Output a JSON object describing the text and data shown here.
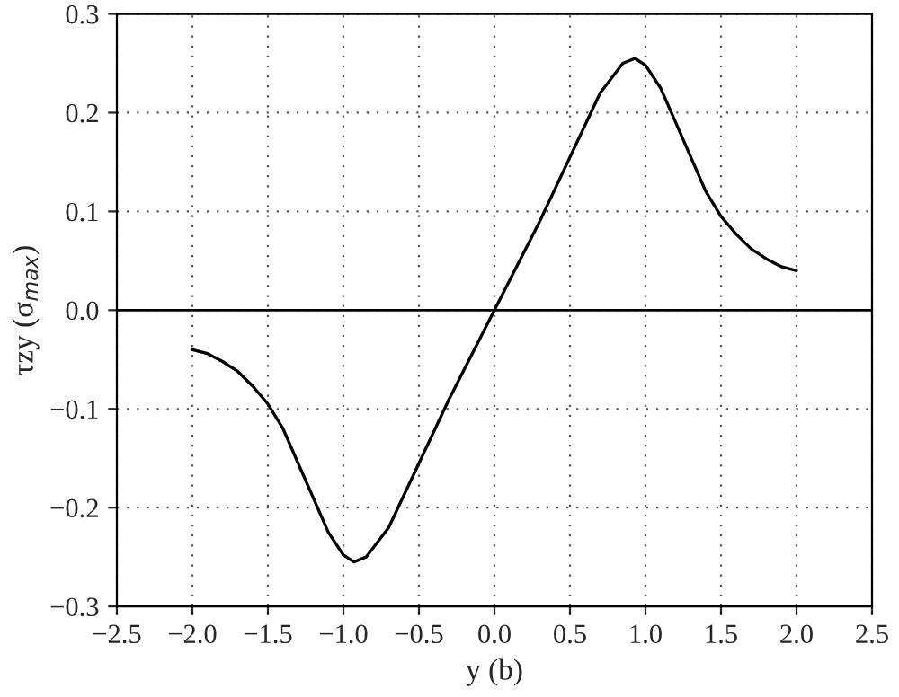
{
  "chart_data": {
    "type": "line",
    "xlabel": "y (b)",
    "ylabel": "τzy (σ$_{max}$)",
    "series": [
      {
        "color": "#000000",
        "x": [
          -2.0,
          -1.9,
          -1.8,
          -1.7,
          -1.6,
          -1.5,
          -1.4,
          -1.3,
          -1.2,
          -1.1,
          -1.0,
          -0.93,
          -0.85,
          -0.7,
          -0.5,
          -0.3,
          -0.1,
          0.0,
          0.1,
          0.3,
          0.5,
          0.7,
          0.85,
          0.93,
          1.0,
          1.1,
          1.2,
          1.3,
          1.4,
          1.5,
          1.6,
          1.7,
          1.8,
          1.9,
          2.0
        ],
        "values": [
          -0.04,
          -0.044,
          -0.052,
          -0.062,
          -0.077,
          -0.095,
          -0.12,
          -0.155,
          -0.19,
          -0.225,
          -0.248,
          -0.255,
          -0.25,
          -0.22,
          -0.155,
          -0.09,
          -0.03,
          0.0,
          0.03,
          0.09,
          0.155,
          0.22,
          0.25,
          0.255,
          0.248,
          0.225,
          0.19,
          0.155,
          0.12,
          0.095,
          0.077,
          0.062,
          0.052,
          0.044,
          0.04
        ]
      }
    ],
    "xlim": [
      -2.5,
      2.5
    ],
    "ylim": [
      -0.3,
      0.3
    ],
    "xticks": [
      {
        "value": -2.5,
        "label": "−2.5"
      },
      {
        "value": -2.0,
        "label": "−2.0"
      },
      {
        "value": -1.5,
        "label": "−1.5"
      },
      {
        "value": -1.0,
        "label": "−1.0"
      },
      {
        "value": -0.5,
        "label": "−0.5"
      },
      {
        "value": 0.0,
        "label": "0.0"
      },
      {
        "value": 0.5,
        "label": "0.5"
      },
      {
        "value": 1.0,
        "label": "1.0"
      },
      {
        "value": 1.5,
        "label": "1.5"
      },
      {
        "value": 2.0,
        "label": "2.0"
      },
      {
        "value": 2.5,
        "label": "2.5"
      }
    ],
    "yticks": [
      {
        "value": -0.3,
        "label": "−0.3"
      },
      {
        "value": -0.2,
        "label": "−0.2"
      },
      {
        "value": -0.1,
        "label": "−0.1"
      },
      {
        "value": 0.0,
        "label": "0.0"
      },
      {
        "value": 0.1,
        "label": "0.1"
      },
      {
        "value": 0.2,
        "label": "0.2"
      },
      {
        "value": 0.3,
        "label": "0.3"
      }
    ],
    "ref_lines": [
      {
        "axis": "y",
        "value": 0.0,
        "color": "#000000",
        "line_style": "solid"
      }
    ],
    "grid": true,
    "line_style": "solid",
    "marker": "none"
  }
}
